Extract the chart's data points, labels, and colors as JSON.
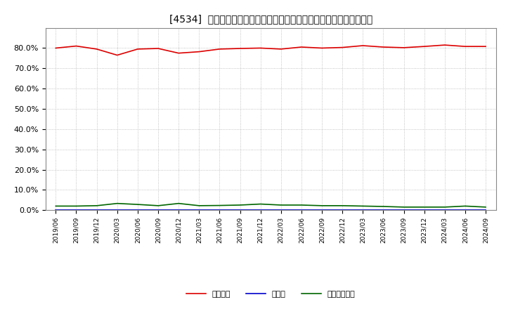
{
  "title": "[4534]  自己資本、のれん、繰延税金資産の総資産に対する比率の推移",
  "title_fontsize": 10,
  "background_color": "#ffffff",
  "plot_bg_color": "#ffffff",
  "grid_color": "#aaaaaa",
  "x_labels": [
    "2019/06",
    "2019/09",
    "2019/12",
    "2020/03",
    "2020/06",
    "2020/09",
    "2020/12",
    "2021/03",
    "2021/06",
    "2021/09",
    "2021/12",
    "2022/03",
    "2022/06",
    "2022/09",
    "2022/12",
    "2023/03",
    "2023/06",
    "2023/09",
    "2023/12",
    "2024/03",
    "2024/06",
    "2024/09"
  ],
  "jikoshihon": [
    80.0,
    81.0,
    79.5,
    76.5,
    79.5,
    79.8,
    77.5,
    78.2,
    79.5,
    79.8,
    80.0,
    79.5,
    80.5,
    80.0,
    80.3,
    81.2,
    80.5,
    80.2,
    80.8,
    81.5,
    80.8,
    80.8
  ],
  "noren": [
    0.0,
    0.0,
    0.0,
    0.0,
    0.0,
    0.0,
    0.0,
    0.0,
    0.0,
    0.0,
    0.0,
    0.0,
    0.0,
    0.0,
    0.0,
    0.0,
    0.0,
    0.0,
    0.0,
    0.0,
    0.0,
    0.0
  ],
  "kuenzeizei": [
    2.0,
    2.0,
    2.2,
    3.3,
    2.8,
    2.2,
    3.3,
    2.2,
    2.3,
    2.5,
    3.0,
    2.5,
    2.5,
    2.2,
    2.2,
    2.0,
    1.8,
    1.5,
    1.5,
    1.5,
    2.0,
    1.5
  ],
  "jikoshihon_color": "#dd0000",
  "noren_color": "#0000cc",
  "kuenzeizei_color": "#006600",
  "ylim": [
    0,
    90
  ],
  "yticks": [
    0,
    10,
    20,
    30,
    40,
    50,
    60,
    70,
    80
  ],
  "legend_labels": [
    "自己資本",
    "のれん",
    "繰延税金資産"
  ]
}
